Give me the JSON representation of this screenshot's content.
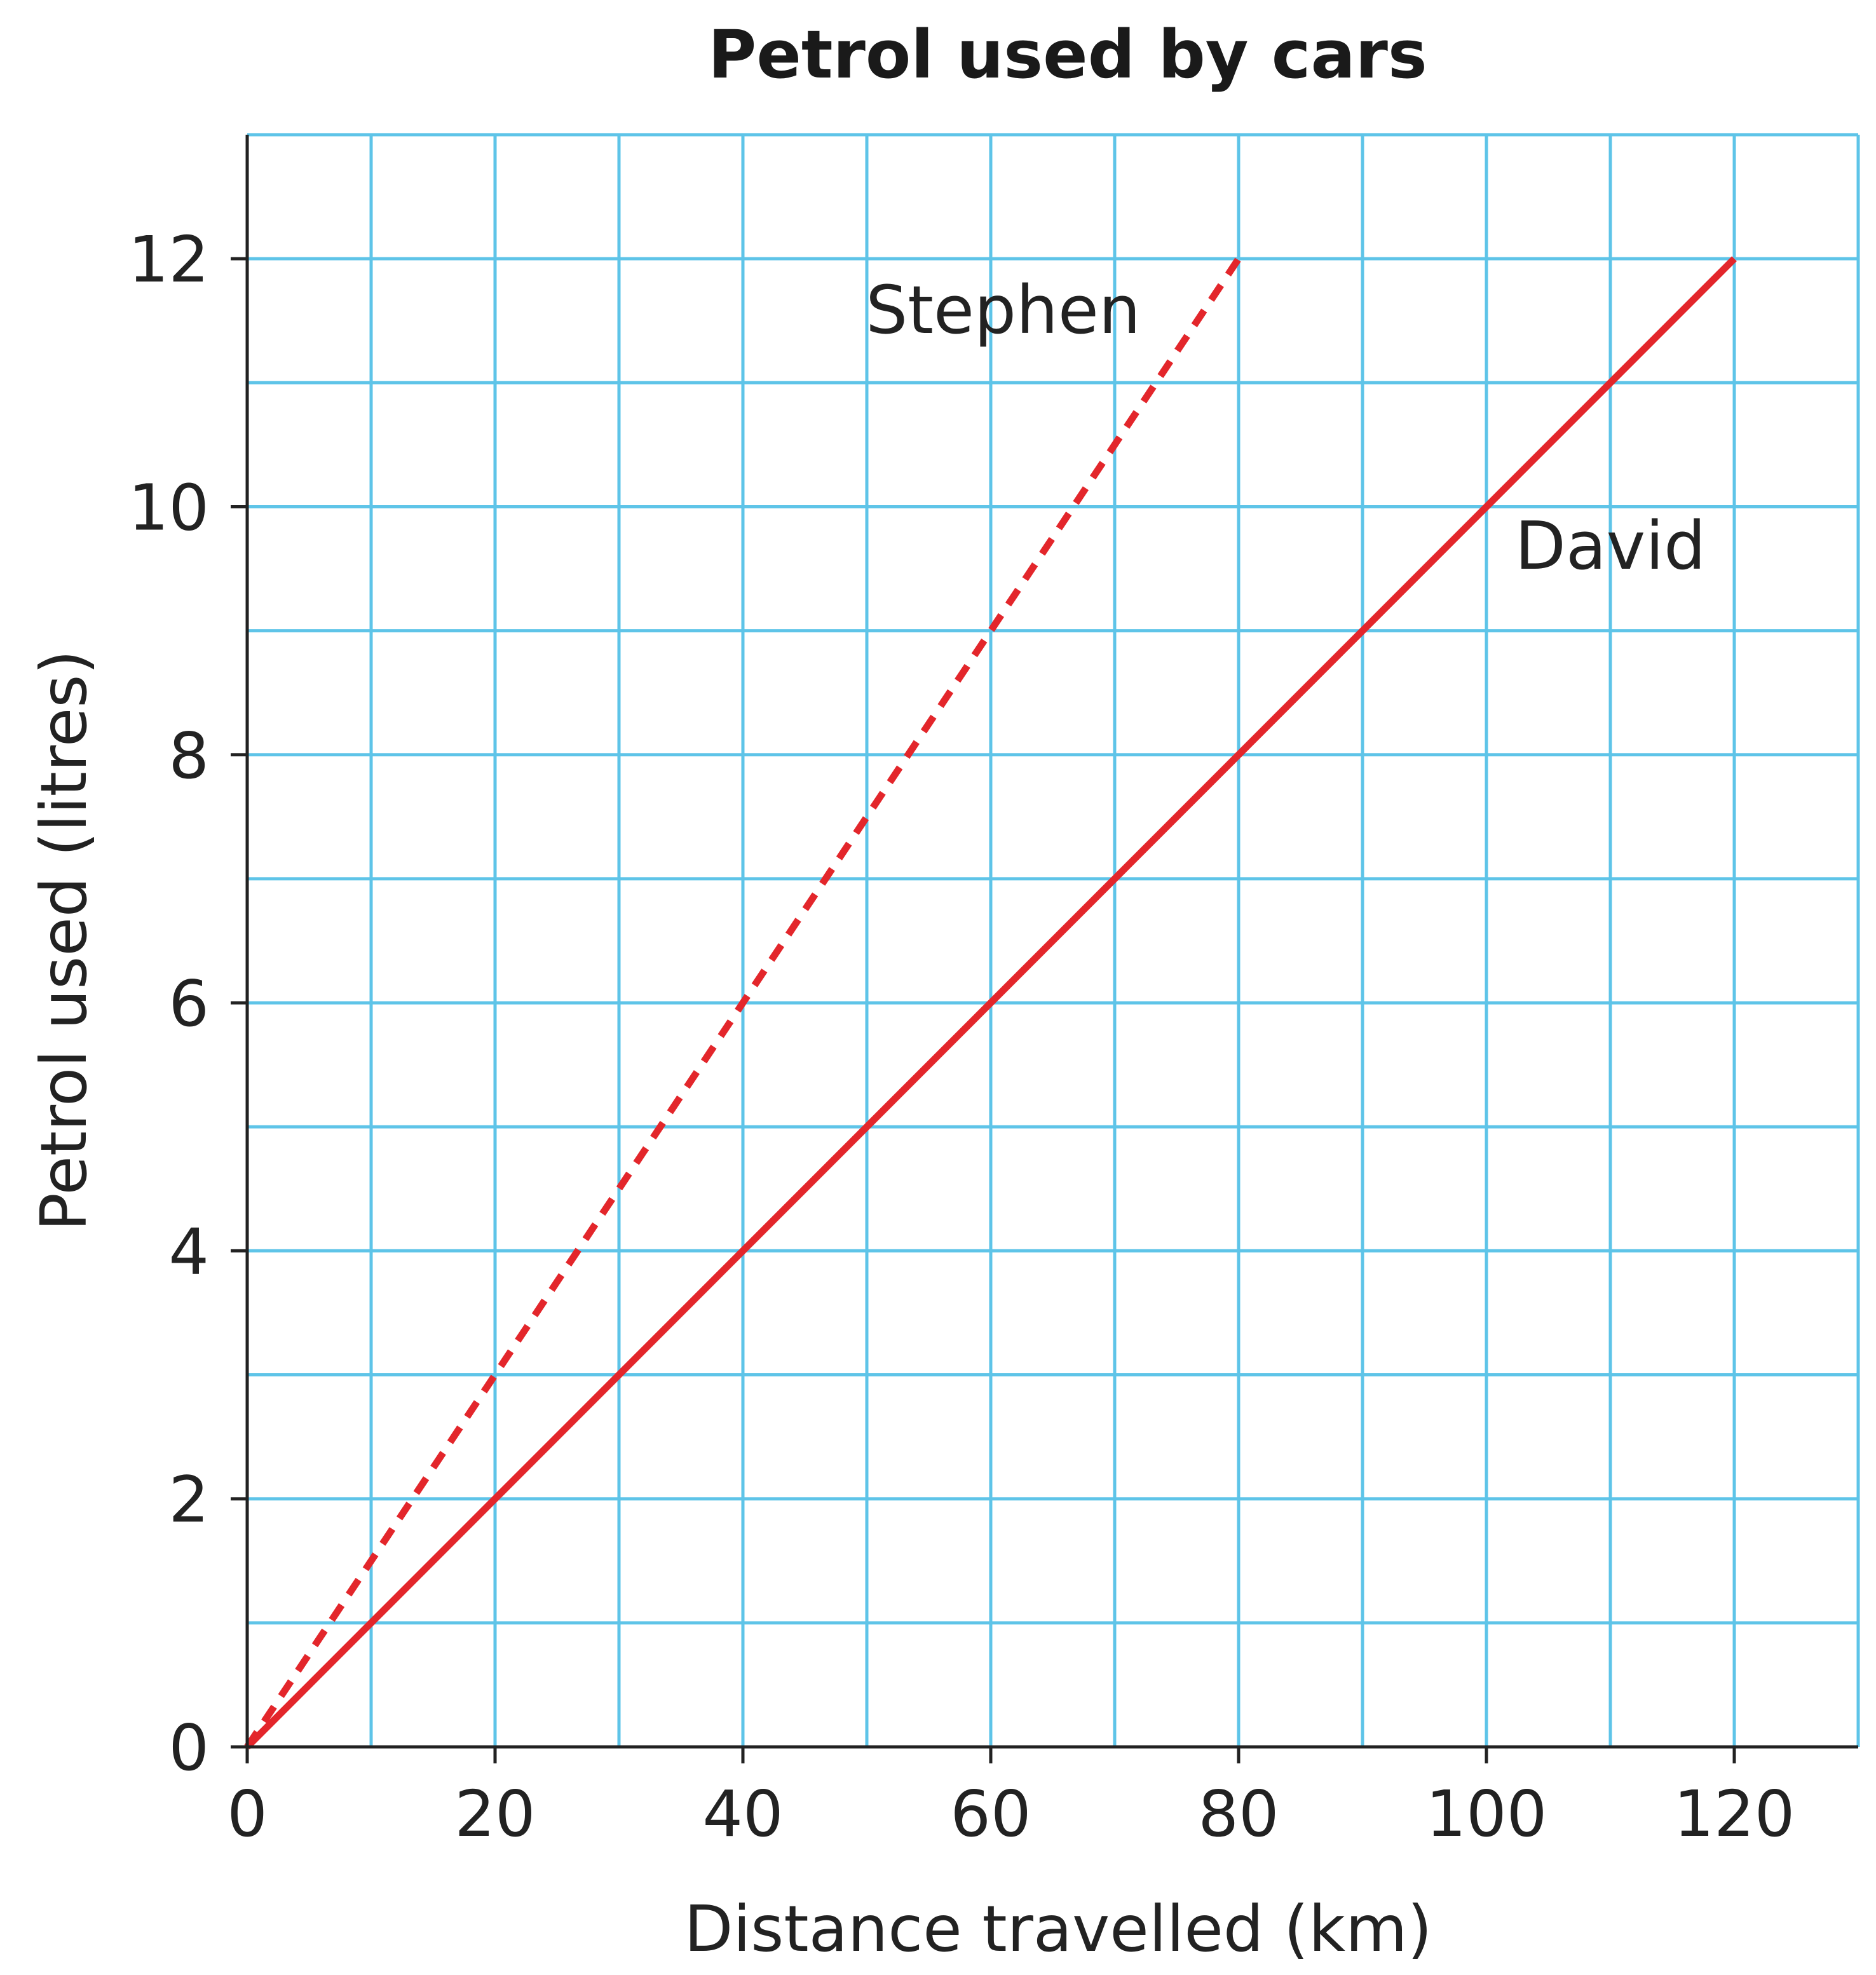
{
  "chart_data": {
    "type": "line",
    "title": "Petrol used by cars",
    "xlabel": "Distance travelled (km)",
    "ylabel": "Petrol used (litres)",
    "xlim": [
      0,
      130
    ],
    "ylim": [
      0,
      13
    ],
    "x_ticks": [
      0,
      20,
      40,
      60,
      80,
      100,
      120
    ],
    "y_ticks": [
      0,
      2,
      4,
      6,
      8,
      10,
      12
    ],
    "x_minor_step": 10,
    "y_minor_step": 1,
    "grid": true,
    "grid_color": "#5ec4e8",
    "line_color": "#e3262b",
    "series": [
      {
        "name": "Stephen",
        "style": "dashed",
        "x": [
          0,
          80
        ],
        "y": [
          0,
          12
        ],
        "label_at": [
          61,
          11.4
        ]
      },
      {
        "name": "David",
        "style": "solid",
        "x": [
          0,
          120
        ],
        "y": [
          0,
          12
        ],
        "label_at": [
          110,
          9.5
        ]
      }
    ]
  }
}
